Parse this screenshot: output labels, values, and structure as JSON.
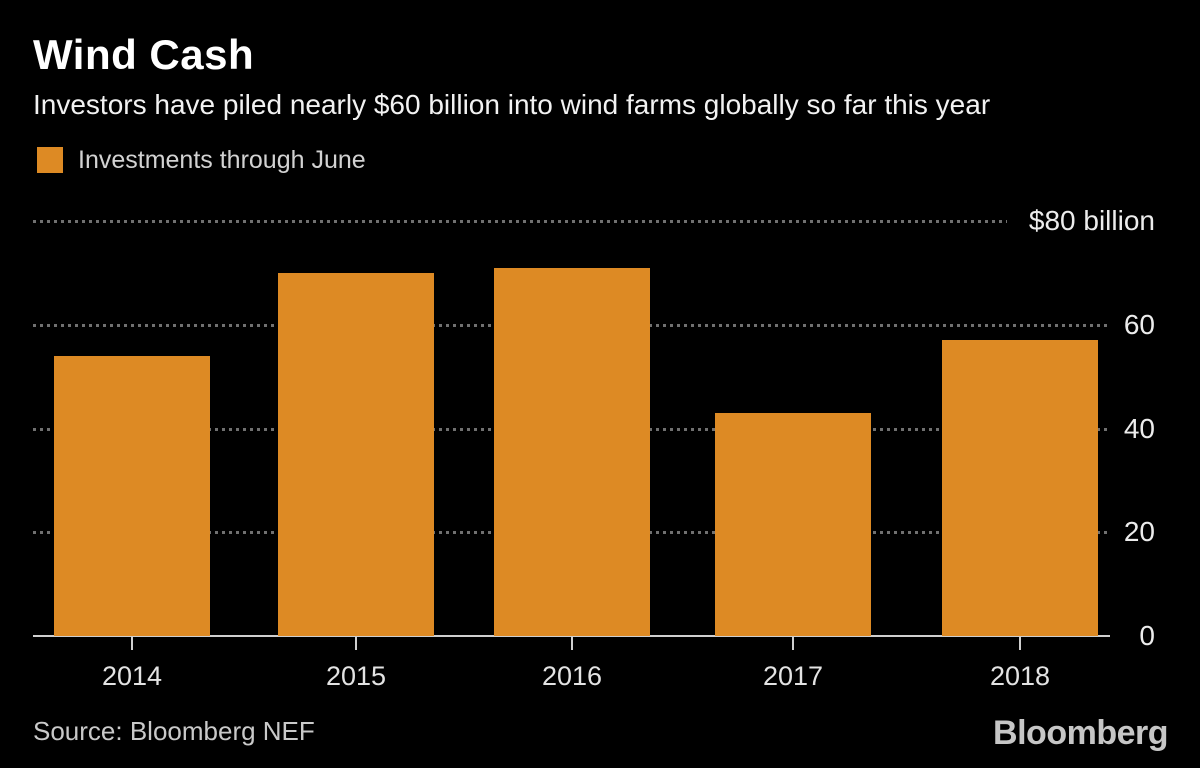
{
  "header": {
    "title": "Wind Cash",
    "subtitle": "Investors have piled nearly $60 billion into wind farms globally so far this year"
  },
  "legend": {
    "label": "Investments through June"
  },
  "chart_data": {
    "type": "bar",
    "title": "Wind Cash",
    "subtitle": "Investors have piled nearly $60 billion into wind farms globally so far this year",
    "series_name": "Investments through June",
    "categories": [
      "2014",
      "2015",
      "2016",
      "2017",
      "2018"
    ],
    "values": [
      54,
      70,
      71,
      43,
      57
    ],
    "unit": "billion USD",
    "xlabel": "",
    "ylabel": "",
    "ylim": [
      0,
      80
    ],
    "yticks": [
      0,
      20,
      40,
      60,
      80
    ],
    "ytick_labels": [
      "0",
      "20",
      "40",
      "60",
      "$80 billion"
    ],
    "grid": "horizontal-dotted",
    "legend_position": "top-left",
    "ytick_label_position": "right",
    "colors": {
      "bar": "#DD8A24",
      "background": "#000000",
      "grid_dot": "#707070",
      "axis": "#CFCFCF"
    }
  },
  "footer": {
    "source": "Source: Bloomberg NEF",
    "logo": "Bloomberg"
  }
}
